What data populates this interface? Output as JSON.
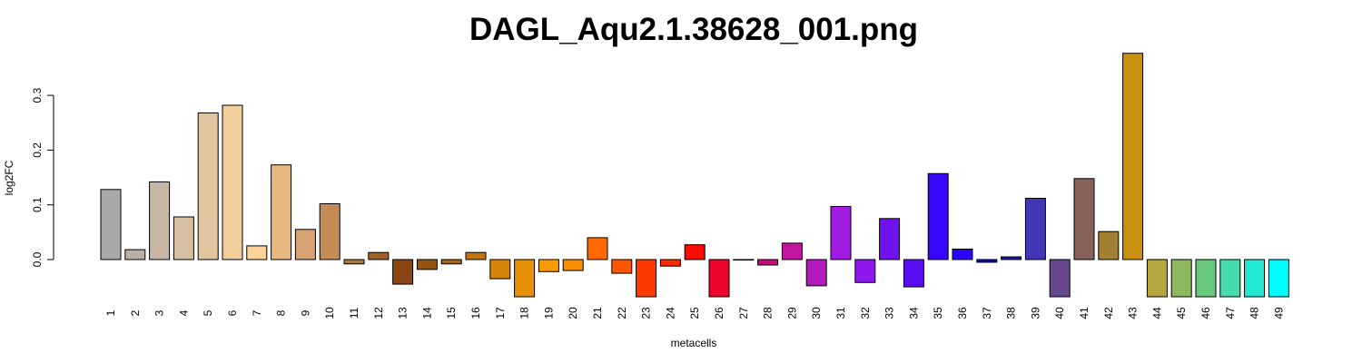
{
  "chart_data": {
    "type": "bar",
    "title": "DAGL_Aqu2.1.38628_001.png",
    "xlabel": "metacells",
    "ylabel": "log2FC",
    "ylim": [
      -0.07,
      0.38
    ],
    "yticks": [
      "0.0",
      "0.1",
      "0.2",
      "0.3"
    ],
    "ytick_values": [
      0.0,
      0.1,
      0.2,
      0.3
    ],
    "grid": false,
    "legend": "none",
    "categories": [
      "1",
      "2",
      "3",
      "4",
      "5",
      "6",
      "7",
      "8",
      "9",
      "10",
      "11",
      "12",
      "13",
      "14",
      "15",
      "16",
      "17",
      "18",
      "19",
      "20",
      "21",
      "22",
      "23",
      "24",
      "25",
      "26",
      "27",
      "28",
      "29",
      "30",
      "31",
      "32",
      "33",
      "34",
      "35",
      "36",
      "37",
      "38",
      "39",
      "40",
      "41",
      "42",
      "43",
      "44",
      "45",
      "46",
      "47",
      "48",
      "49"
    ],
    "values": [
      0.128,
      0.018,
      0.142,
      0.078,
      0.268,
      0.282,
      0.025,
      0.173,
      0.055,
      0.102,
      -0.008,
      0.013,
      -0.045,
      -0.018,
      -0.008,
      0.013,
      -0.035,
      -0.068,
      -0.022,
      -0.02,
      0.04,
      -0.025,
      -0.068,
      -0.012,
      0.027,
      -0.068,
      -0.001,
      -0.01,
      0.03,
      -0.048,
      0.097,
      -0.042,
      0.075,
      -0.05,
      0.157,
      0.019,
      -0.005,
      0.005,
      0.112,
      -0.068,
      0.148,
      0.051,
      0.377,
      -0.068,
      -0.068,
      -0.068,
      -0.068,
      -0.068,
      -0.068
    ],
    "colors": [
      "#a9a9a9",
      "#bbb0a5",
      "#c6b6a4",
      "#d6bfa0",
      "#e2c49e",
      "#f2cc9b",
      "#ffd399",
      "#e8b882",
      "#d6a372",
      "#c58b57",
      "#b2773d",
      "#a0612a",
      "#8b4614",
      "#955412",
      "#aa6613",
      "#c27612",
      "#d6830a",
      "#e99104",
      "#f99b00",
      "#f68e00",
      "#ff6900",
      "#ff5600",
      "#ff3a00",
      "#ff2a00",
      "#fb0b00",
      "#ec0429",
      "#de0558",
      "#c90b77",
      "#c315a1",
      "#b41abf",
      "#a21ce4",
      "#8e18ed",
      "#6f12ed",
      "#5a0cf1",
      "#3a06fa",
      "#2a06fc",
      "#0a07c9",
      "#1f16a5",
      "#4437b5",
      "#66478c",
      "#86625b",
      "#a27f33",
      "#c8900e",
      "#b5a63f",
      "#8cb85b",
      "#68c87b",
      "#45dbad",
      "#23e9d4",
      "#00fdfd"
    ]
  }
}
